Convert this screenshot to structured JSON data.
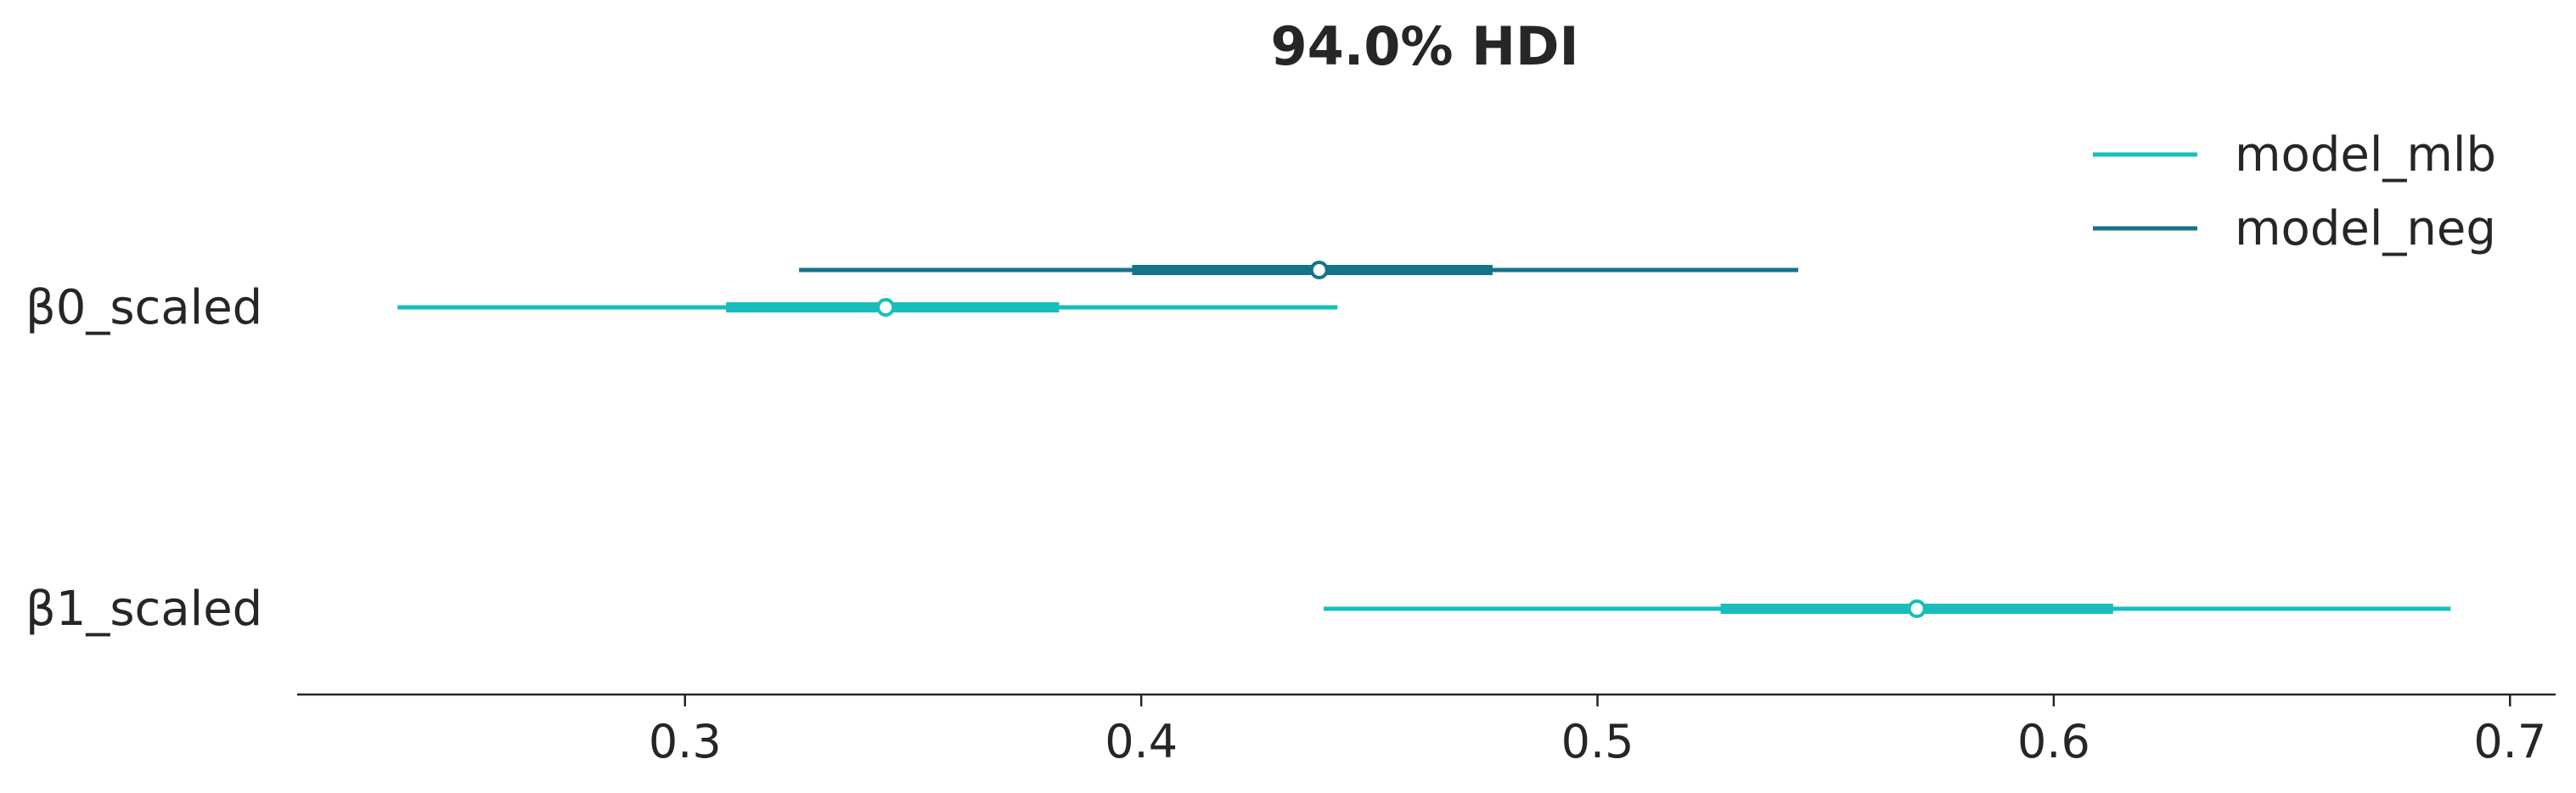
{
  "chart_data": {
    "type": "forest",
    "title": "94.0% HDI",
    "xlabel": "",
    "ylabel": "",
    "xlim": [
      0.215,
      0.71
    ],
    "x_ticks": [
      0.3,
      0.4,
      0.5,
      0.6,
      0.7
    ],
    "x_tick_labels": [
      "0.3",
      "0.4",
      "0.5",
      "0.6",
      "0.7"
    ],
    "grid": false,
    "legend_position": "top-right",
    "categories": [
      "β0_scaled",
      "β1_scaled"
    ],
    "series": [
      {
        "name": "model_mlb",
        "color": "#17bebb",
        "points": [
          {
            "category": "β0_scaled",
            "hdi_low": 0.237,
            "iqr_low": 0.309,
            "median": 0.344,
            "iqr_high": 0.382,
            "hdi_high": 0.443
          },
          {
            "category": "β1_scaled",
            "hdi_low": 0.44,
            "iqr_low": 0.527,
            "median": 0.57,
            "iqr_high": 0.613,
            "hdi_high": 0.687
          }
        ]
      },
      {
        "name": "model_neg",
        "color": "#13758a",
        "points": [
          {
            "category": "β0_scaled",
            "hdi_low": 0.325,
            "iqr_low": 0.398,
            "median": 0.439,
            "iqr_high": 0.477,
            "hdi_high": 0.544
          }
        ]
      }
    ]
  }
}
